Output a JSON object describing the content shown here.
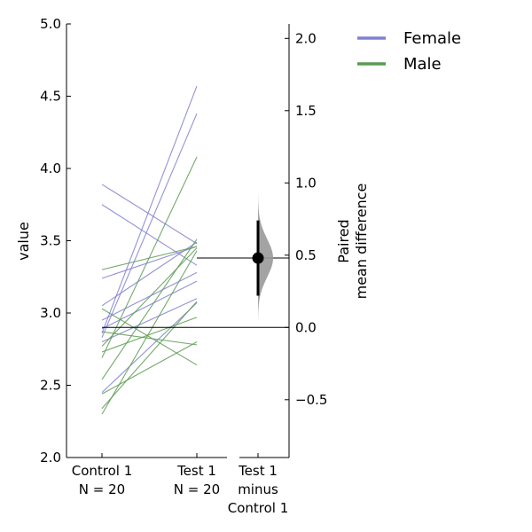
{
  "chart_data": {
    "type": "paired-estimation",
    "ylabel": "value",
    "ylim": [
      2.0,
      5.0
    ],
    "yticks": [
      "2.0",
      "2.5",
      "3.0",
      "3.5",
      "4.0",
      "4.5",
      "5.0"
    ],
    "categories": [
      {
        "line1": "Control 1",
        "line2": "N = 20"
      },
      {
        "line1": "Test 1",
        "line2": "N = 20"
      }
    ],
    "delta_category": [
      "Test 1",
      "minus",
      "Control 1"
    ],
    "legend": [
      {
        "name": "Female",
        "color": "#8080d0"
      },
      {
        "name": "Male",
        "color": "#5a9a50"
      }
    ],
    "pairs": [
      {
        "group": "Female",
        "control": 3.89,
        "test": 3.48
      },
      {
        "group": "Female",
        "control": 3.75,
        "test": 3.33
      },
      {
        "group": "Female",
        "control": 3.24,
        "test": 3.46
      },
      {
        "group": "Female",
        "control": 3.05,
        "test": 3.49
      },
      {
        "group": "Female",
        "control": 2.95,
        "test": 3.28
      },
      {
        "group": "Female",
        "control": 2.89,
        "test": 3.22
      },
      {
        "group": "Female",
        "control": 2.86,
        "test": 4.57
      },
      {
        "group": "Female",
        "control": 2.83,
        "test": 4.38
      },
      {
        "group": "Female",
        "control": 2.8,
        "test": 3.1
      },
      {
        "group": "Female",
        "control": 2.45,
        "test": 3.07
      },
      {
        "group": "Male",
        "control": 3.3,
        "test": 3.46
      },
      {
        "group": "Male",
        "control": 3.03,
        "test": 2.64
      },
      {
        "group": "Male",
        "control": 2.87,
        "test": 2.78
      },
      {
        "group": "Male",
        "control": 2.77,
        "test": 3.45
      },
      {
        "group": "Male",
        "control": 2.73,
        "test": 2.97
      },
      {
        "group": "Male",
        "control": 2.69,
        "test": 4.08
      },
      {
        "group": "Male",
        "control": 2.54,
        "test": 3.51
      },
      {
        "group": "Male",
        "control": 2.44,
        "test": 2.8
      },
      {
        "group": "Male",
        "control": 2.34,
        "test": 3.08
      },
      {
        "group": "Male",
        "control": 2.3,
        "test": 3.43
      }
    ],
    "delta": {
      "ylabel": [
        "Paired",
        "mean difference"
      ],
      "ylim": [
        -0.9,
        2.1
      ],
      "yticks": [
        "−0.5",
        "0.0",
        "0.5",
        "1.0",
        "1.5",
        "2.0"
      ],
      "mean_difference": 0.48,
      "ci": [
        0.22,
        0.74
      ],
      "distribution_range": [
        0.05,
        0.95
      ],
      "distribution_color": "#999999"
    }
  }
}
